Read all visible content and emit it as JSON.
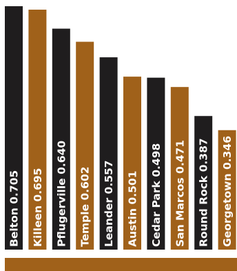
{
  "chart_data": {
    "type": "bar",
    "orientation": "vertical",
    "categories": [
      "Belton",
      "Killeen",
      "Pflugerville",
      "Temple",
      "Leander",
      "Austin",
      "Cedar Park",
      "San Marcos",
      "Round Rock",
      "Georgetown"
    ],
    "values": [
      0.705,
      0.695,
      0.64,
      0.602,
      0.557,
      0.501,
      0.498,
      0.471,
      0.387,
      0.346
    ],
    "value_labels": [
      "0.705",
      "0.695",
      "0.640",
      "0.602",
      "0.557",
      "0.501",
      "0.498",
      "0.471",
      "0.387",
      "0.346"
    ],
    "ylim": [
      0,
      0.705
    ],
    "colors": [
      "#1f1d1e",
      "#a0611a",
      "#1f1d1e",
      "#a0611a",
      "#1f1d1e",
      "#a0611a",
      "#1f1d1e",
      "#a0611a",
      "#1f1d1e",
      "#a0611a"
    ],
    "label_color_inside": "#ffffff",
    "label_color_outside": "#111111",
    "base_band_color": "#a0611a",
    "title": "",
    "xlabel": "",
    "ylabel": "",
    "grid": false,
    "legend": "none"
  }
}
